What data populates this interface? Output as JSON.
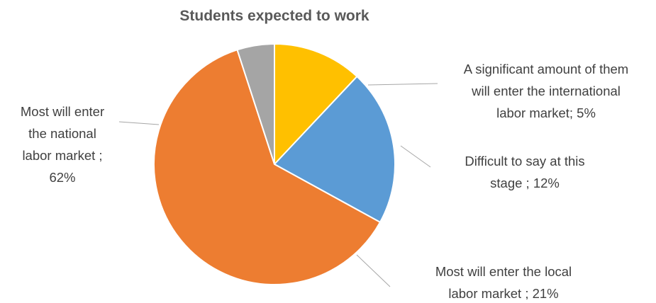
{
  "chart_data": {
    "type": "pie",
    "title": "Students expected to work",
    "start_angle_deg": 0,
    "direction": "clockwise",
    "slices": [
      {
        "category": "Difficult to say at this stage",
        "value": 12,
        "label_lines": [
          "Difficult to say at this",
          "stage ; 12%"
        ],
        "color": "#FFC000"
      },
      {
        "category": "Most will enter the local labor market",
        "value": 21,
        "label_lines": [
          "Most will enter the local",
          "labor market ; 21%"
        ],
        "color": "#5B9BD5"
      },
      {
        "category": "Most will enter the national labor market",
        "value": 62,
        "label_lines": [
          "Most will enter",
          "the national",
          "labor market ;",
          "62%"
        ],
        "color": "#ED7D31"
      },
      {
        "category": "A significant amount of them will enter the international labor market",
        "value": 5,
        "label_lines": [
          "A significant amount of them",
          "will enter the international",
          "labor market; 5%"
        ],
        "color": "#A5A5A5"
      }
    ],
    "legend": "none",
    "data_labels": "outside with leader lines"
  }
}
